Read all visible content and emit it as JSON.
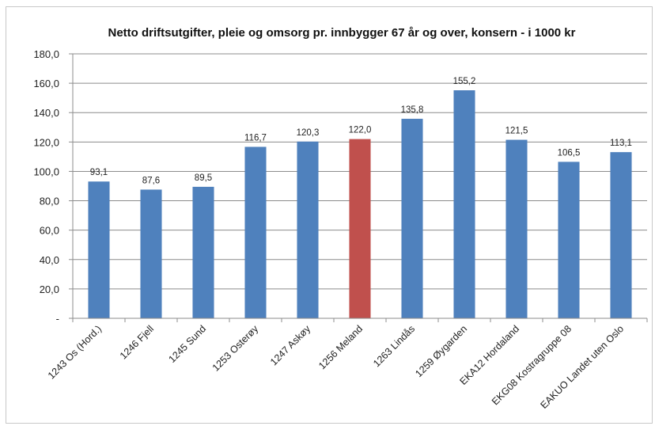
{
  "chart_data": {
    "type": "bar",
    "title": "Netto driftsutgifter, pleie og omsorg pr. innbygger 67 år og over, konsern - i 1000 kr",
    "xlabel": "",
    "ylabel": "",
    "ylim": [
      0,
      180
    ],
    "yticks": [
      {
        "value": 0,
        "label": "-"
      },
      {
        "value": 20,
        "label": "20,0"
      },
      {
        "value": 40,
        "label": "40,0"
      },
      {
        "value": 60,
        "label": "60,0"
      },
      {
        "value": 80,
        "label": "80,0"
      },
      {
        "value": 100,
        "label": "100,0"
      },
      {
        "value": 120,
        "label": "120,0"
      },
      {
        "value": 140,
        "label": "140,0"
      },
      {
        "value": 160,
        "label": "160,0"
      },
      {
        "value": 180,
        "label": "180,0"
      }
    ],
    "categories": [
      "1243 Os (Hord.)",
      "1246 Fjell",
      "1245 Sund",
      "1253 Osterøy",
      "1247 Askøy",
      "1256 Meland",
      "1263 Lindås",
      "1259 Øygarden",
      "EKA12 Hordaland",
      "EKG08 Kostragruppe 08",
      "EAKUO Landet uten Oslo"
    ],
    "values": [
      93.1,
      87.6,
      89.5,
      116.7,
      120.3,
      122.0,
      135.8,
      155.2,
      121.5,
      106.5,
      113.1
    ],
    "value_labels": [
      "93,1",
      "87,6",
      "89,5",
      "116,7",
      "120,3",
      "122,0",
      "135,8",
      "155,2",
      "121,5",
      "106,5",
      "113,1"
    ],
    "bar_color": "#4f81bd",
    "highlight_color": "#c0504d",
    "highlight_category": "1256 Meland",
    "grid": true,
    "legend": "none"
  }
}
